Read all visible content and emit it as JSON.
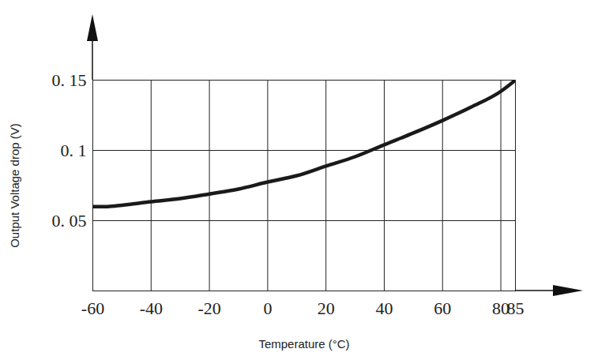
{
  "chart_data": {
    "type": "line",
    "x_label": "Temperature (°C)",
    "y_label": "Output Voltage drop (V)",
    "x": [
      -60,
      -55,
      -50,
      -40,
      -30,
      -20,
      -10,
      0,
      10,
      20,
      30,
      40,
      50,
      60,
      70,
      80,
      85
    ],
    "values": [
      0.06,
      0.06,
      0.061,
      0.0635,
      0.0657,
      0.069,
      0.0725,
      0.0775,
      0.082,
      0.0888,
      0.0955,
      0.104,
      0.1124,
      0.1213,
      0.131,
      0.142,
      0.15
    ],
    "color": "#1a1a1a",
    "xlim": [
      -60,
      85
    ],
    "xticks": [
      -60,
      -40,
      -20,
      0,
      20,
      40,
      60,
      80,
      85
    ],
    "ylim": [
      0,
      0.15
    ],
    "yticks": [
      {
        "value": 0.05,
        "label": "0. 05"
      },
      {
        "value": 0.1,
        "label": "0. 1"
      },
      {
        "value": 0.15,
        "label": "0. 15"
      }
    ],
    "grid": true
  }
}
